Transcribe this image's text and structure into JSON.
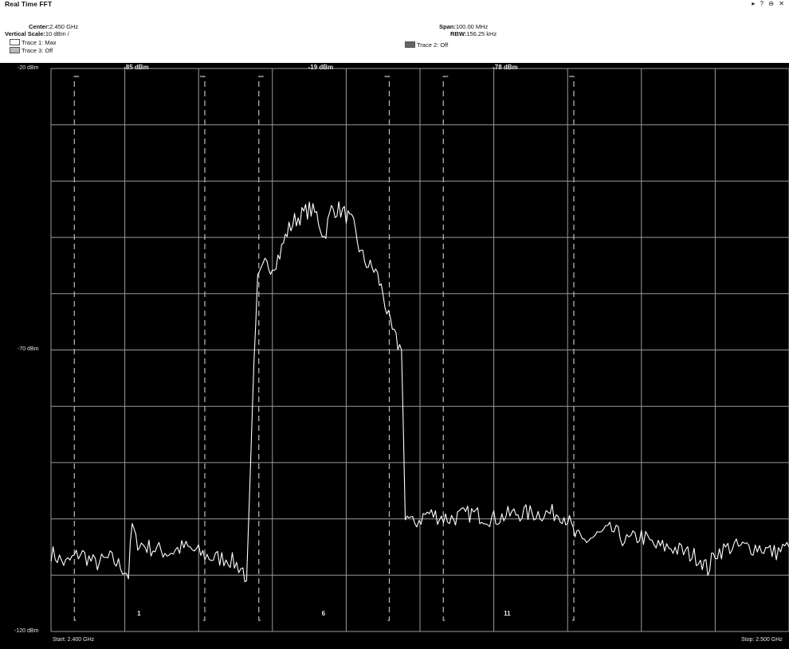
{
  "window": {
    "title": "Real Time FFT",
    "controls": [
      "▸",
      "?",
      "⊖",
      "✕"
    ]
  },
  "info": {
    "center_label": "Center:",
    "center_value": "2.450 GHz",
    "vscale_label": "Vertical Scale:",
    "vscale_value": "10 dBm /",
    "span_label": "Span:",
    "span_value": "100.00 MHz",
    "rbw_label": "RBW:",
    "rbw_value": "156.25 kHz",
    "traces": [
      {
        "label": "Trace 1: Max",
        "color": "#ffffff"
      },
      {
        "label": "Trace 2: Off",
        "color": "#666666"
      },
      {
        "label": "Trace 3: Off",
        "color": "#bbbbbb"
      }
    ]
  },
  "chart_data": {
    "type": "line",
    "x_unit": "GHz",
    "y_unit": "dBm",
    "xlim": [
      2.4,
      2.5
    ],
    "ylim": [
      -120,
      -20
    ],
    "grid": true,
    "y_labels": [
      "-20 dBm",
      "-70 dBm",
      "-120 dBm"
    ],
    "x_start_label": "Start: 2.400 GHz",
    "x_stop_label": "Stop: 2.500 GHz",
    "channels": [
      {
        "name": "1",
        "center": 2.412,
        "low": 2.401,
        "high": 2.423,
        "power_label": "-85 dBm"
      },
      {
        "name": "6",
        "center": 2.437,
        "low": 2.426,
        "high": 2.448,
        "power_label": "-19 dBm"
      },
      {
        "name": "11",
        "center": 2.462,
        "low": 2.451,
        "high": 2.473,
        "power_label": "-78 dBm"
      }
    ],
    "series": [
      {
        "color": "#ffffff",
        "points": [
          [
            2.4,
            -106
          ],
          [
            2.402,
            -108
          ],
          [
            2.404,
            -106
          ],
          [
            2.406,
            -108
          ],
          [
            2.408,
            -107
          ],
          [
            2.41,
            -109
          ],
          [
            2.4105,
            -110
          ],
          [
            2.411,
            -101
          ],
          [
            2.4115,
            -104
          ],
          [
            2.413,
            -105
          ],
          [
            2.416,
            -106
          ],
          [
            2.418,
            -105
          ],
          [
            2.42,
            -106
          ],
          [
            2.422,
            -107
          ],
          [
            2.424,
            -107
          ],
          [
            2.426,
            -109
          ],
          [
            2.4265,
            -111
          ],
          [
            2.427,
            -92
          ],
          [
            2.4275,
            -72
          ],
          [
            2.428,
            -58
          ],
          [
            2.429,
            -55
          ],
          [
            2.43,
            -55
          ],
          [
            2.431,
            -53
          ],
          [
            2.432,
            -49
          ],
          [
            2.433,
            -47
          ],
          [
            2.434,
            -46
          ],
          [
            2.435,
            -45
          ],
          [
            2.436,
            -46
          ],
          [
            2.437,
            -50
          ],
          [
            2.438,
            -45
          ],
          [
            2.439,
            -45
          ],
          [
            2.44,
            -46
          ],
          [
            2.441,
            -48
          ],
          [
            2.442,
            -53
          ],
          [
            2.443,
            -55
          ],
          [
            2.444,
            -56
          ],
          [
            2.445,
            -60
          ],
          [
            2.446,
            -66
          ],
          [
            2.447,
            -69
          ],
          [
            2.4475,
            -70
          ],
          [
            2.448,
            -99
          ],
          [
            2.449,
            -101
          ],
          [
            2.451,
            -99
          ],
          [
            2.454,
            -100
          ],
          [
            2.457,
            -99
          ],
          [
            2.46,
            -100
          ],
          [
            2.463,
            -99
          ],
          [
            2.466,
            -99
          ],
          [
            2.469,
            -99
          ],
          [
            2.47,
            -100
          ],
          [
            2.471,
            -103
          ],
          [
            2.472,
            -104
          ],
          [
            2.474,
            -103
          ],
          [
            2.476,
            -102
          ],
          [
            2.478,
            -104
          ],
          [
            2.48,
            -103
          ],
          [
            2.482,
            -105
          ],
          [
            2.484,
            -105
          ],
          [
            2.486,
            -106
          ],
          [
            2.488,
            -107
          ],
          [
            2.489,
            -109
          ],
          [
            2.49,
            -106
          ],
          [
            2.492,
            -105
          ],
          [
            2.494,
            -105
          ],
          [
            2.496,
            -105
          ],
          [
            2.498,
            -106
          ],
          [
            2.5,
            -105
          ]
        ]
      }
    ]
  }
}
